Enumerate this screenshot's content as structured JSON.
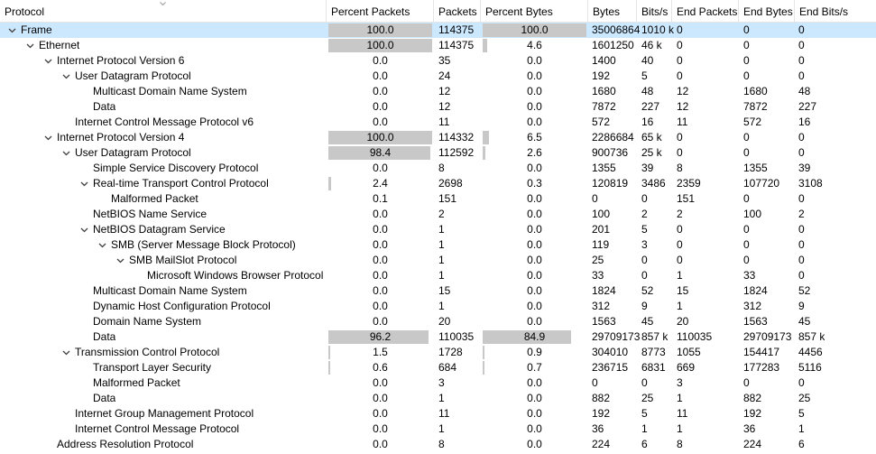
{
  "header": {
    "columns": [
      "Protocol",
      "Percent Packets",
      "Packets",
      "Percent Bytes",
      "Bytes",
      "Bits/s",
      "End Packets",
      "End Bytes",
      "End Bits/s"
    ]
  },
  "rows": [
    {
      "name": "Frame",
      "depth": 0,
      "expanded": true,
      "pp": "100.0",
      "pkts": "114375",
      "pb": "100.0",
      "bytes": "35006864",
      "bits": "1010 k",
      "ep": "0",
      "eb": "0",
      "ebits": "0",
      "pp_fill": 1.0,
      "pb_fill": 1.0,
      "selected": true
    },
    {
      "name": "Ethernet",
      "depth": 1,
      "expanded": true,
      "pp": "100.0",
      "pkts": "114375",
      "pb": "4.6",
      "bytes": "1601250",
      "bits": "46 k",
      "ep": "0",
      "eb": "0",
      "ebits": "0",
      "pp_fill": 1.0,
      "pb_fill": 0.046
    },
    {
      "name": "Internet Protocol Version 6",
      "depth": 2,
      "expanded": true,
      "pp": "0.0",
      "pkts": "35",
      "pb": "0.0",
      "bytes": "1400",
      "bits": "40",
      "ep": "0",
      "eb": "0",
      "ebits": "0",
      "pp_fill": 0,
      "pb_fill": 0
    },
    {
      "name": "User Datagram Protocol",
      "depth": 3,
      "expanded": true,
      "pp": "0.0",
      "pkts": "24",
      "pb": "0.0",
      "bytes": "192",
      "bits": "5",
      "ep": "0",
      "eb": "0",
      "ebits": "0",
      "pp_fill": 0,
      "pb_fill": 0
    },
    {
      "name": "Multicast Domain Name System",
      "depth": 4,
      "expanded": false,
      "pp": "0.0",
      "pkts": "12",
      "pb": "0.0",
      "bytes": "1680",
      "bits": "48",
      "ep": "12",
      "eb": "1680",
      "ebits": "48",
      "pp_fill": 0,
      "pb_fill": 0
    },
    {
      "name": "Data",
      "depth": 4,
      "expanded": false,
      "pp": "0.0",
      "pkts": "12",
      "pb": "0.0",
      "bytes": "7872",
      "bits": "227",
      "ep": "12",
      "eb": "7872",
      "ebits": "227",
      "pp_fill": 0,
      "pb_fill": 0
    },
    {
      "name": "Internet Control Message Protocol v6",
      "depth": 3,
      "expanded": false,
      "pp": "0.0",
      "pkts": "11",
      "pb": "0.0",
      "bytes": "572",
      "bits": "16",
      "ep": "11",
      "eb": "572",
      "ebits": "16",
      "pp_fill": 0,
      "pb_fill": 0
    },
    {
      "name": "Internet Protocol Version 4",
      "depth": 2,
      "expanded": true,
      "pp": "100.0",
      "pkts": "114332",
      "pb": "6.5",
      "bytes": "2286684",
      "bits": "65 k",
      "ep": "0",
      "eb": "0",
      "ebits": "0",
      "pp_fill": 1.0,
      "pb_fill": 0.065
    },
    {
      "name": "User Datagram Protocol",
      "depth": 3,
      "expanded": true,
      "pp": "98.4",
      "pkts": "112592",
      "pb": "2.6",
      "bytes": "900736",
      "bits": "25 k",
      "ep": "0",
      "eb": "0",
      "ebits": "0",
      "pp_fill": 0.984,
      "pb_fill": 0.026
    },
    {
      "name": "Simple Service Discovery Protocol",
      "depth": 4,
      "expanded": false,
      "pp": "0.0",
      "pkts": "8",
      "pb": "0.0",
      "bytes": "1355",
      "bits": "39",
      "ep": "8",
      "eb": "1355",
      "ebits": "39",
      "pp_fill": 0,
      "pb_fill": 0
    },
    {
      "name": "Real-time Transport Control Protocol",
      "depth": 4,
      "expanded": true,
      "pp": "2.4",
      "pkts": "2698",
      "pb": "0.3",
      "bytes": "120819",
      "bits": "3486",
      "ep": "2359",
      "eb": "107720",
      "ebits": "3108",
      "pp_fill": 0.024,
      "pb_fill": 0
    },
    {
      "name": "Malformed Packet",
      "depth": 5,
      "expanded": false,
      "pp": "0.1",
      "pkts": "151",
      "pb": "0.0",
      "bytes": "0",
      "bits": "0",
      "ep": "151",
      "eb": "0",
      "ebits": "0",
      "pp_fill": 0,
      "pb_fill": 0
    },
    {
      "name": "NetBIOS Name Service",
      "depth": 4,
      "expanded": false,
      "pp": "0.0",
      "pkts": "2",
      "pb": "0.0",
      "bytes": "100",
      "bits": "2",
      "ep": "2",
      "eb": "100",
      "ebits": "2",
      "pp_fill": 0,
      "pb_fill": 0
    },
    {
      "name": "NetBIOS Datagram Service",
      "depth": 4,
      "expanded": true,
      "pp": "0.0",
      "pkts": "1",
      "pb": "0.0",
      "bytes": "201",
      "bits": "5",
      "ep": "0",
      "eb": "0",
      "ebits": "0",
      "pp_fill": 0,
      "pb_fill": 0
    },
    {
      "name": "SMB (Server Message Block Protocol)",
      "depth": 5,
      "expanded": true,
      "pp": "0.0",
      "pkts": "1",
      "pb": "0.0",
      "bytes": "119",
      "bits": "3",
      "ep": "0",
      "eb": "0",
      "ebits": "0",
      "pp_fill": 0,
      "pb_fill": 0
    },
    {
      "name": "SMB MailSlot Protocol",
      "depth": 6,
      "expanded": true,
      "pp": "0.0",
      "pkts": "1",
      "pb": "0.0",
      "bytes": "25",
      "bits": "0",
      "ep": "0",
      "eb": "0",
      "ebits": "0",
      "pp_fill": 0,
      "pb_fill": 0
    },
    {
      "name": "Microsoft Windows Browser Protocol",
      "depth": 7,
      "expanded": false,
      "pp": "0.0",
      "pkts": "1",
      "pb": "0.0",
      "bytes": "33",
      "bits": "0",
      "ep": "1",
      "eb": "33",
      "ebits": "0",
      "pp_fill": 0,
      "pb_fill": 0
    },
    {
      "name": "Multicast Domain Name System",
      "depth": 4,
      "expanded": false,
      "pp": "0.0",
      "pkts": "15",
      "pb": "0.0",
      "bytes": "1824",
      "bits": "52",
      "ep": "15",
      "eb": "1824",
      "ebits": "52",
      "pp_fill": 0,
      "pb_fill": 0
    },
    {
      "name": "Dynamic Host Configuration Protocol",
      "depth": 4,
      "expanded": false,
      "pp": "0.0",
      "pkts": "1",
      "pb": "0.0",
      "bytes": "312",
      "bits": "9",
      "ep": "1",
      "eb": "312",
      "ebits": "9",
      "pp_fill": 0,
      "pb_fill": 0
    },
    {
      "name": "Domain Name System",
      "depth": 4,
      "expanded": false,
      "pp": "0.0",
      "pkts": "20",
      "pb": "0.0",
      "bytes": "1563",
      "bits": "45",
      "ep": "20",
      "eb": "1563",
      "ebits": "45",
      "pp_fill": 0,
      "pb_fill": 0
    },
    {
      "name": "Data",
      "depth": 4,
      "expanded": false,
      "pp": "96.2",
      "pkts": "110035",
      "pb": "84.9",
      "bytes": "29709173",
      "bits": "857 k",
      "ep": "110035",
      "eb": "29709173",
      "ebits": "857 k",
      "pp_fill": 0.962,
      "pb_fill": 0.849
    },
    {
      "name": "Transmission Control Protocol",
      "depth": 3,
      "expanded": true,
      "pp": "1.5",
      "pkts": "1728",
      "pb": "0.9",
      "bytes": "304010",
      "bits": "8773",
      "ep": "1055",
      "eb": "154417",
      "ebits": "4456",
      "pp_fill": 0.015,
      "pb_fill": 0.009
    },
    {
      "name": "Transport Layer Security",
      "depth": 4,
      "expanded": false,
      "pp": "0.6",
      "pkts": "684",
      "pb": "0.7",
      "bytes": "236715",
      "bits": "6831",
      "ep": "669",
      "eb": "177283",
      "ebits": "5116",
      "pp_fill": 0.006,
      "pb_fill": 0.007
    },
    {
      "name": "Malformed Packet",
      "depth": 4,
      "expanded": false,
      "pp": "0.0",
      "pkts": "3",
      "pb": "0.0",
      "bytes": "0",
      "bits": "0",
      "ep": "3",
      "eb": "0",
      "ebits": "0",
      "pp_fill": 0,
      "pb_fill": 0
    },
    {
      "name": "Data",
      "depth": 4,
      "expanded": false,
      "pp": "0.0",
      "pkts": "1",
      "pb": "0.0",
      "bytes": "882",
      "bits": "25",
      "ep": "1",
      "eb": "882",
      "ebits": "25",
      "pp_fill": 0,
      "pb_fill": 0
    },
    {
      "name": "Internet Group Management Protocol",
      "depth": 3,
      "expanded": false,
      "pp": "0.0",
      "pkts": "11",
      "pb": "0.0",
      "bytes": "192",
      "bits": "5",
      "ep": "11",
      "eb": "192",
      "ebits": "5",
      "pp_fill": 0,
      "pb_fill": 0
    },
    {
      "name": "Internet Control Message Protocol",
      "depth": 3,
      "expanded": false,
      "pp": "0.0",
      "pkts": "1",
      "pb": "0.0",
      "bytes": "36",
      "bits": "1",
      "ep": "1",
      "eb": "36",
      "ebits": "1",
      "pp_fill": 0,
      "pb_fill": 0
    },
    {
      "name": "Address Resolution Protocol",
      "depth": 2,
      "expanded": false,
      "pp": "0.0",
      "pkts": "8",
      "pb": "0.0",
      "bytes": "224",
      "bits": "6",
      "ep": "8",
      "eb": "224",
      "ebits": "6",
      "pp_fill": 0,
      "pb_fill": 0
    }
  ],
  "colors": {
    "bar": "#c8c8c8",
    "selected": "#cce8ff"
  },
  "icons": {
    "expand": "chevron-down-icon",
    "sort": "sort-indicator-icon"
  }
}
